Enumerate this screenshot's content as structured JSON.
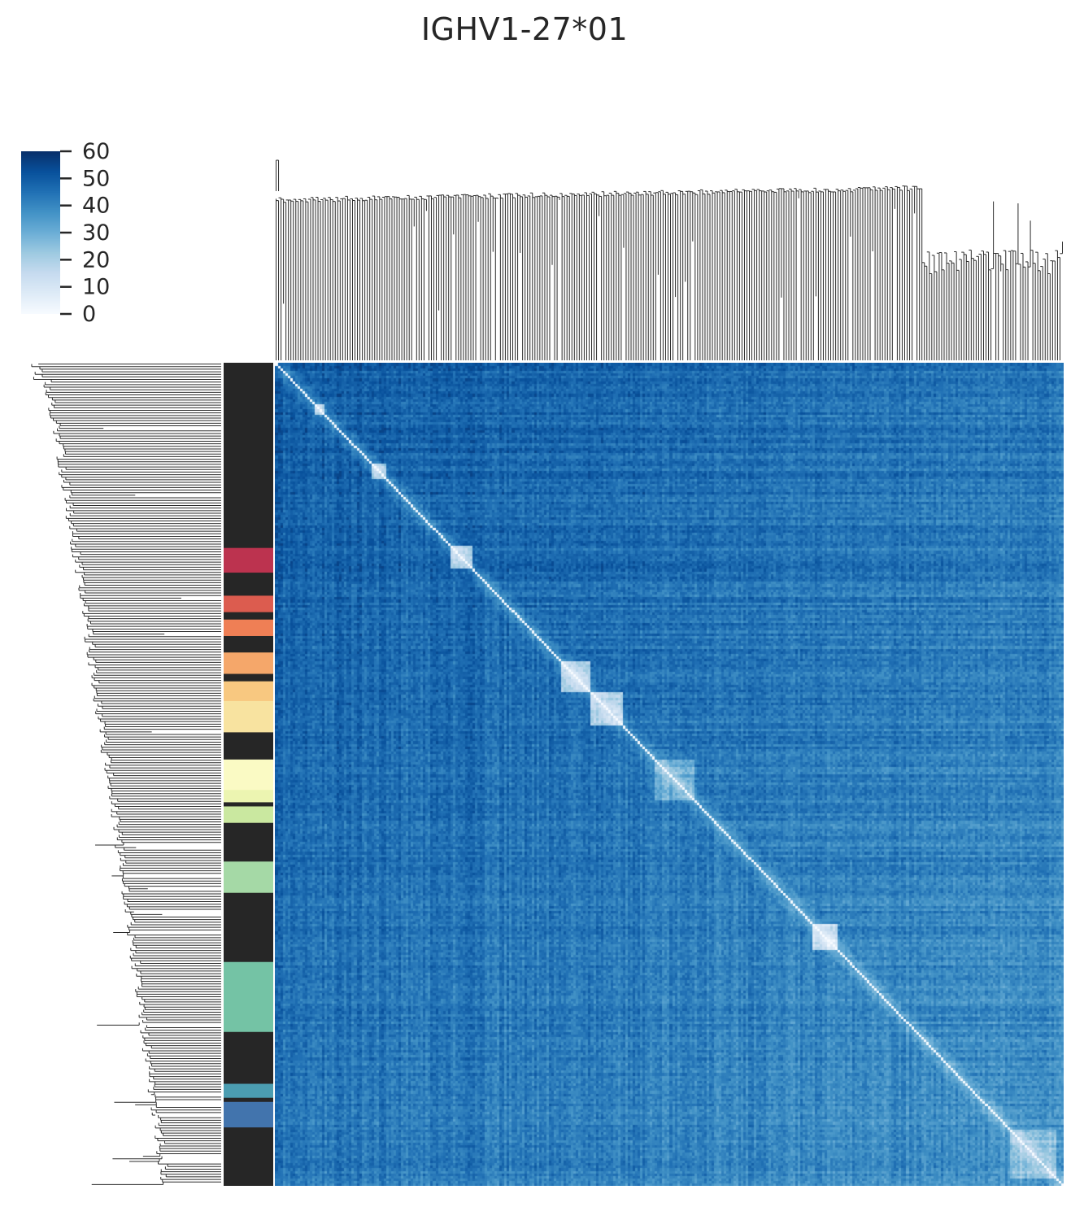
{
  "chart_data": {
    "type": "heatmap",
    "title": "IGHV1-27*01",
    "subtitle": "",
    "xlabel": "",
    "ylabel": "",
    "n": 320,
    "colormap": "Blues",
    "colormap_stops": [
      "#f7fbff",
      "#deebf7",
      "#c6dbef",
      "#9ecae1",
      "#6baed6",
      "#4292c6",
      "#2171b5",
      "#08519c",
      "#08306b"
    ],
    "clim": [
      0,
      60
    ],
    "colorbar": {
      "ticks": [
        60,
        50,
        40,
        30,
        20,
        10,
        0
      ],
      "placement": "top-left"
    },
    "matrix_description": "symmetric pairwise distance matrix; diagonal = 0",
    "diagonal_value": 0,
    "typical_offdiagonal_range": [
      22,
      52
    ],
    "row_dendrogram": true,
    "col_dendrogram": true,
    "row_color_annotation": {
      "label": "",
      "segments": [
        {
          "from": 0,
          "to": 0.225,
          "color": "#262626"
        },
        {
          "from": 0.225,
          "to": 0.255,
          "color": "#bc334f"
        },
        {
          "from": 0.255,
          "to": 0.283,
          "color": "#262626"
        },
        {
          "from": 0.283,
          "to": 0.303,
          "color": "#dc5c4f"
        },
        {
          "from": 0.303,
          "to": 0.312,
          "color": "#262626"
        },
        {
          "from": 0.312,
          "to": 0.332,
          "color": "#ef7f55"
        },
        {
          "from": 0.332,
          "to": 0.352,
          "color": "#262626"
        },
        {
          "from": 0.352,
          "to": 0.378,
          "color": "#f5a76a"
        },
        {
          "from": 0.378,
          "to": 0.387,
          "color": "#262626"
        },
        {
          "from": 0.387,
          "to": 0.411,
          "color": "#f8c880"
        },
        {
          "from": 0.411,
          "to": 0.449,
          "color": "#f8e3a0"
        },
        {
          "from": 0.449,
          "to": 0.482,
          "color": "#262626"
        },
        {
          "from": 0.482,
          "to": 0.519,
          "color": "#fafac4"
        },
        {
          "from": 0.519,
          "to": 0.534,
          "color": "#ecf5b1"
        },
        {
          "from": 0.534,
          "to": 0.539,
          "color": "#262626"
        },
        {
          "from": 0.539,
          "to": 0.559,
          "color": "#cae8a0"
        },
        {
          "from": 0.559,
          "to": 0.606,
          "color": "#262626"
        },
        {
          "from": 0.606,
          "to": 0.644,
          "color": "#a5d9a6"
        },
        {
          "from": 0.644,
          "to": 0.728,
          "color": "#262626"
        },
        {
          "from": 0.728,
          "to": 0.813,
          "color": "#74c3a5"
        },
        {
          "from": 0.813,
          "to": 0.876,
          "color": "#262626"
        },
        {
          "from": 0.876,
          "to": 0.893,
          "color": "#4b9db1"
        },
        {
          "from": 0.893,
          "to": 0.898,
          "color": "#262626"
        },
        {
          "from": 0.898,
          "to": 0.929,
          "color": "#4274ad"
        },
        {
          "from": 0.929,
          "to": 1.0,
          "color": "#262626"
        }
      ]
    },
    "grid": false,
    "legend": "colorbar top-left"
  }
}
